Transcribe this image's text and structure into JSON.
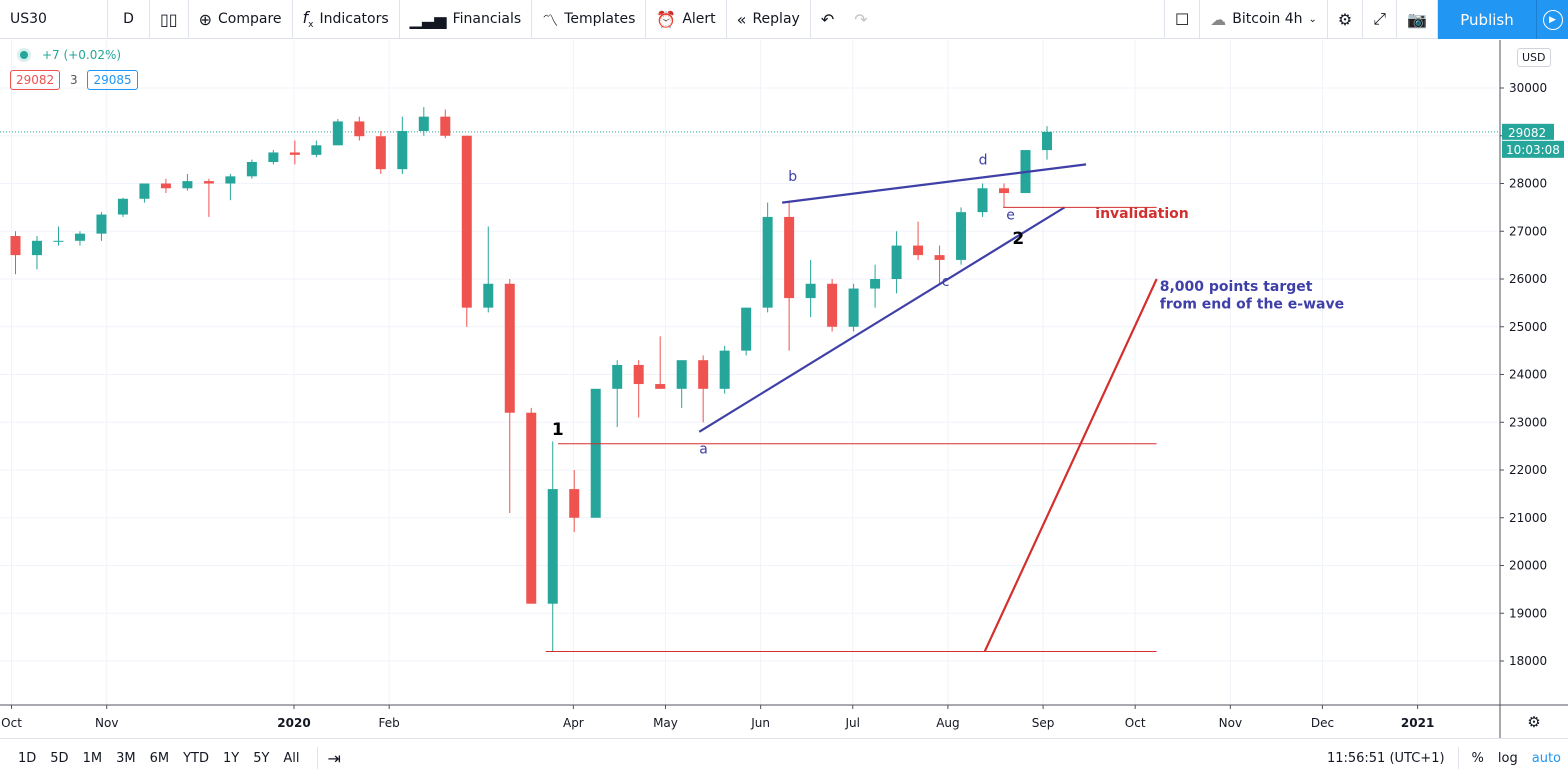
{
  "toolbar": {
    "symbol": "US30",
    "interval": "D",
    "compare": "Compare",
    "indicators": "Indicators",
    "financials": "Financials",
    "templates": "Templates",
    "alert": "Alert",
    "replay": "Replay",
    "layout_name": "Bitcoin 4h",
    "publish": "Publish"
  },
  "legend": {
    "change": "+7 (+0.02%)",
    "bid": "29082",
    "spread": "3",
    "ask": "29085"
  },
  "price_axis": {
    "currency": "USD",
    "last_price": "29082",
    "countdown": "10:03:08"
  },
  "bottom": {
    "ranges": [
      "1D",
      "5D",
      "1M",
      "3M",
      "6M",
      "YTD",
      "1Y",
      "5Y",
      "All"
    ],
    "time": "11:56:51 (UTC+1)",
    "percent": "%",
    "log": "log",
    "auto": "auto"
  },
  "colors": {
    "up": "#26a69a",
    "down": "#ef5350",
    "wave_lines": "#3f3fa8",
    "levels": "#d32f2f",
    "accent": "#2196f3"
  },
  "chart_data": {
    "type": "candlestick",
    "timeframe_shown": "weekly approximation of daily candles",
    "ylim": [
      17000,
      30800
    ],
    "y_ticks": [
      18000,
      19000,
      20000,
      21000,
      22000,
      23000,
      24000,
      25000,
      26000,
      27000,
      28000,
      29000,
      30000
    ],
    "x_ticks": [
      {
        "label": "Oct",
        "date": "2019-10-01"
      },
      {
        "label": "Nov",
        "date": "2019-11-01"
      },
      {
        "label": "2020",
        "date": "2020-01-01"
      },
      {
        "label": "Feb",
        "date": "2020-02-01"
      },
      {
        "label": "Apr",
        "date": "2020-04-01"
      },
      {
        "label": "May",
        "date": "2020-05-01"
      },
      {
        "label": "Jun",
        "date": "2020-06-01"
      },
      {
        "label": "Jul",
        "date": "2020-07-01"
      },
      {
        "label": "Aug",
        "date": "2020-08-01"
      },
      {
        "label": "Sep",
        "date": "2020-09-01"
      },
      {
        "label": "Oct",
        "date": "2020-10-01"
      },
      {
        "label": "Nov",
        "date": "2020-11-01"
      },
      {
        "label": "Dec",
        "date": "2020-12-01"
      },
      {
        "label": "2021",
        "date": "2021-01-01"
      }
    ],
    "candles": [
      [
        "2019-09-30",
        26900,
        27000,
        26100,
        26500
      ],
      [
        "2019-10-07",
        26500,
        26900,
        26200,
        26800
      ],
      [
        "2019-10-14",
        26800,
        27100,
        26700,
        26800
      ],
      [
        "2019-10-21",
        26800,
        27000,
        26700,
        26950
      ],
      [
        "2019-10-28",
        26950,
        27400,
        26800,
        27350
      ],
      [
        "2019-11-04",
        27350,
        27700,
        27300,
        27680
      ],
      [
        "2019-11-11",
        27680,
        28000,
        27600,
        28000
      ],
      [
        "2019-11-18",
        28000,
        28100,
        27800,
        27900
      ],
      [
        "2019-11-25",
        27900,
        28200,
        27850,
        28050
      ],
      [
        "2019-12-02",
        28050,
        28100,
        27300,
        28000
      ],
      [
        "2019-12-09",
        28000,
        28200,
        27650,
        28150
      ],
      [
        "2019-12-16",
        28150,
        28500,
        28100,
        28450
      ],
      [
        "2019-12-23",
        28450,
        28700,
        28400,
        28650
      ],
      [
        "2019-12-30",
        28650,
        28900,
        28400,
        28600
      ],
      [
        "2020-01-06",
        28600,
        28900,
        28550,
        28800
      ],
      [
        "2020-01-13",
        28800,
        29350,
        28800,
        29300
      ],
      [
        "2020-01-20",
        29300,
        29400,
        28900,
        28990
      ],
      [
        "2020-01-27",
        28990,
        29100,
        28200,
        28300
      ],
      [
        "2020-02-03",
        28300,
        29400,
        28200,
        29100
      ],
      [
        "2020-02-10",
        29100,
        29600,
        29000,
        29400
      ],
      [
        "2020-02-17",
        29400,
        29550,
        28950,
        29000
      ],
      [
        "2020-02-24",
        29000,
        29000,
        25000,
        25400
      ],
      [
        "2020-03-02",
        25400,
        27100,
        25300,
        25900
      ],
      [
        "2020-03-09",
        25900,
        26000,
        21100,
        23200
      ],
      [
        "2020-03-16",
        23200,
        23300,
        19200,
        19200
      ],
      [
        "2020-03-23",
        19200,
        22600,
        18200,
        21600
      ],
      [
        "2020-03-30",
        21600,
        22000,
        20700,
        21000
      ],
      [
        "2020-04-06",
        21000,
        23700,
        21000,
        23700
      ],
      [
        "2020-04-13",
        23700,
        24300,
        22900,
        24200
      ],
      [
        "2020-04-20",
        24200,
        24300,
        23100,
        23800
      ],
      [
        "2020-04-27",
        23800,
        24800,
        23700,
        23700
      ],
      [
        "2020-05-04",
        23700,
        24200,
        23300,
        24300
      ],
      [
        "2020-05-11",
        24300,
        24400,
        23000,
        23700
      ],
      [
        "2020-05-18",
        23700,
        24600,
        23600,
        24500
      ],
      [
        "2020-05-25",
        24500,
        25400,
        24400,
        25400
      ],
      [
        "2020-06-01",
        25400,
        27600,
        25300,
        27300
      ],
      [
        "2020-06-08",
        27300,
        27600,
        24500,
        25600
      ],
      [
        "2020-06-15",
        25600,
        26400,
        25200,
        25900
      ],
      [
        "2020-06-22",
        25900,
        26000,
        24900,
        25000
      ],
      [
        "2020-06-29",
        25000,
        25900,
        24900,
        25800
      ],
      [
        "2020-07-06",
        25800,
        26300,
        25400,
        26000
      ],
      [
        "2020-07-13",
        26000,
        27000,
        25700,
        26700
      ],
      [
        "2020-07-20",
        26700,
        27200,
        26400,
        26500
      ],
      [
        "2020-07-27",
        26500,
        26700,
        25900,
        26400
      ],
      [
        "2020-08-03",
        26400,
        27500,
        26300,
        27400
      ],
      [
        "2020-08-10",
        27400,
        28000,
        27300,
        27900
      ],
      [
        "2020-08-17",
        27900,
        28000,
        27500,
        27800
      ],
      [
        "2020-08-24",
        27800,
        28700,
        27800,
        28700
      ],
      [
        "2020-08-31",
        28700,
        29200,
        28500,
        29082
      ]
    ],
    "last_price_line": 29082,
    "annotations": {
      "lines": [
        {
          "name": "upper-trendline",
          "color": "#3f3fa8",
          "from": [
            "2020-06-08",
            27600
          ],
          "to": [
            "2020-09-15",
            28400
          ]
        },
        {
          "name": "lower-trendline",
          "color": "#3f3fa8",
          "from": [
            "2020-05-12",
            22800
          ],
          "to": [
            "2020-09-08",
            27500
          ]
        },
        {
          "name": "wave-1-level",
          "color": "#d32f2f",
          "from": [
            "2020-03-27",
            22550
          ],
          "to": [
            "2020-10-08",
            22550
          ]
        },
        {
          "name": "low-level",
          "color": "#d32f2f",
          "from": [
            "2020-03-23",
            18200
          ],
          "to": [
            "2020-10-08",
            18200
          ]
        },
        {
          "name": "invalidation-level",
          "color": "#d32f2f",
          "from": [
            "2020-08-19",
            27500
          ],
          "to": [
            "2020-10-08",
            27500
          ]
        },
        {
          "name": "target-projection",
          "color": "#d32f2f",
          "from": [
            "2020-08-13",
            18200
          ],
          "to": [
            "2020-10-08",
            26000
          ]
        }
      ],
      "labels": [
        {
          "text": "1",
          "at": [
            "2020-03-25",
            22900
          ],
          "color": "#000",
          "bold": true,
          "size": 17
        },
        {
          "text": "2",
          "at": [
            "2020-08-22",
            26900
          ],
          "color": "#000",
          "bold": true,
          "size": 17
        },
        {
          "text": "a",
          "at": [
            "2020-05-12",
            22350
          ],
          "color": "#3f3fa8"
        },
        {
          "text": "b",
          "at": [
            "2020-06-10",
            28050
          ],
          "color": "#3f3fa8"
        },
        {
          "text": "c",
          "at": [
            "2020-07-30",
            25850
          ],
          "color": "#3f3fa8"
        },
        {
          "text": "d",
          "at": [
            "2020-08-11",
            28400
          ],
          "color": "#3f3fa8"
        },
        {
          "text": "e",
          "at": [
            "2020-08-20",
            27250
          ],
          "color": "#3f3fa8"
        },
        {
          "text": "invalidation",
          "at": [
            "2020-09-18",
            27280
          ],
          "color": "#d32f2f",
          "bold": true
        },
        {
          "text": "8,000 points target",
          "at": [
            "2020-10-09",
            25750
          ],
          "color": "#3f3fa8",
          "bold": true
        },
        {
          "text": "from end of the e-wave",
          "at": [
            "2020-10-09",
            25380
          ],
          "color": "#3f3fa8",
          "bold": true
        }
      ]
    }
  }
}
